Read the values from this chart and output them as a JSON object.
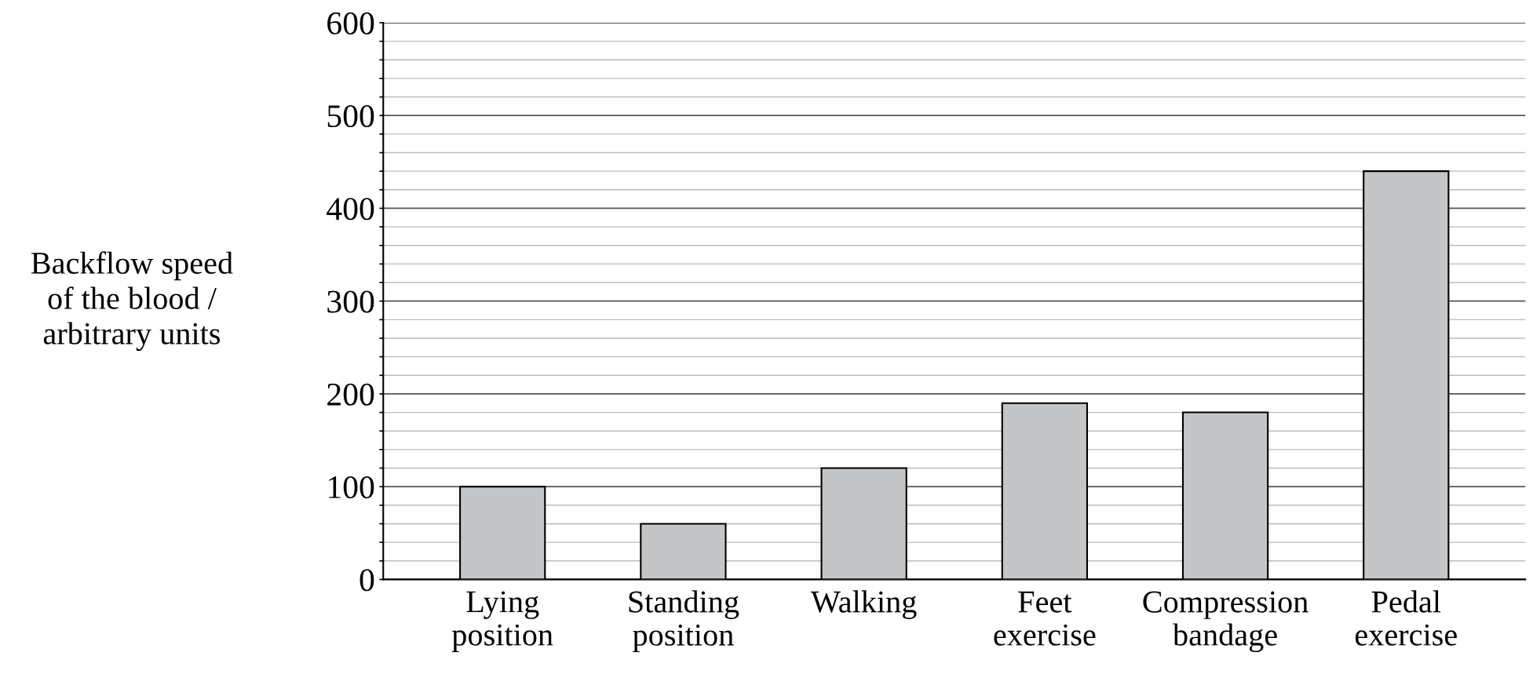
{
  "chart_data": {
    "type": "bar",
    "ylabel": "Backflow speed\nof the blood /\narbitrary units",
    "categories": [
      "Lying\nposition",
      "Standing\nposition",
      "Walking",
      "Feet\nexercise",
      "Compression\nbandage",
      "Pedal\nexercise"
    ],
    "values": [
      100,
      60,
      120,
      190,
      180,
      440
    ],
    "color": "#c4c5c7",
    "ylim": [
      0,
      600
    ],
    "yticks": [
      0,
      {
        "value": 20,
        "label": null
      },
      {
        "value": 40,
        "label": null
      },
      {
        "value": 60,
        "label": null
      },
      {
        "value": 80,
        "label": null
      },
      100,
      {
        "value": 120,
        "label": null
      },
      {
        "value": 140,
        "label": null
      },
      {
        "value": 160,
        "label": null
      },
      {
        "value": 180,
        "label": null
      },
      200,
      {
        "value": 220,
        "label": null
      },
      {
        "value": 240,
        "label": null
      },
      {
        "value": 260,
        "label": null
      },
      {
        "value": 280,
        "label": null
      },
      300,
      {
        "value": 320,
        "label": null
      },
      {
        "value": 340,
        "label": null
      },
      {
        "value": 360,
        "label": null
      },
      {
        "value": 380,
        "label": null
      },
      400,
      {
        "value": 420,
        "label": null
      },
      {
        "value": 440,
        "label": null
      },
      {
        "value": 460,
        "label": null
      },
      {
        "value": 480,
        "label": null
      },
      500,
      {
        "value": 520,
        "label": null
      },
      {
        "value": 540,
        "label": null
      },
      {
        "value": 560,
        "label": null
      },
      {
        "value": 580,
        "label": null
      },
      600
    ],
    "grid": "y",
    "legend": false
  }
}
